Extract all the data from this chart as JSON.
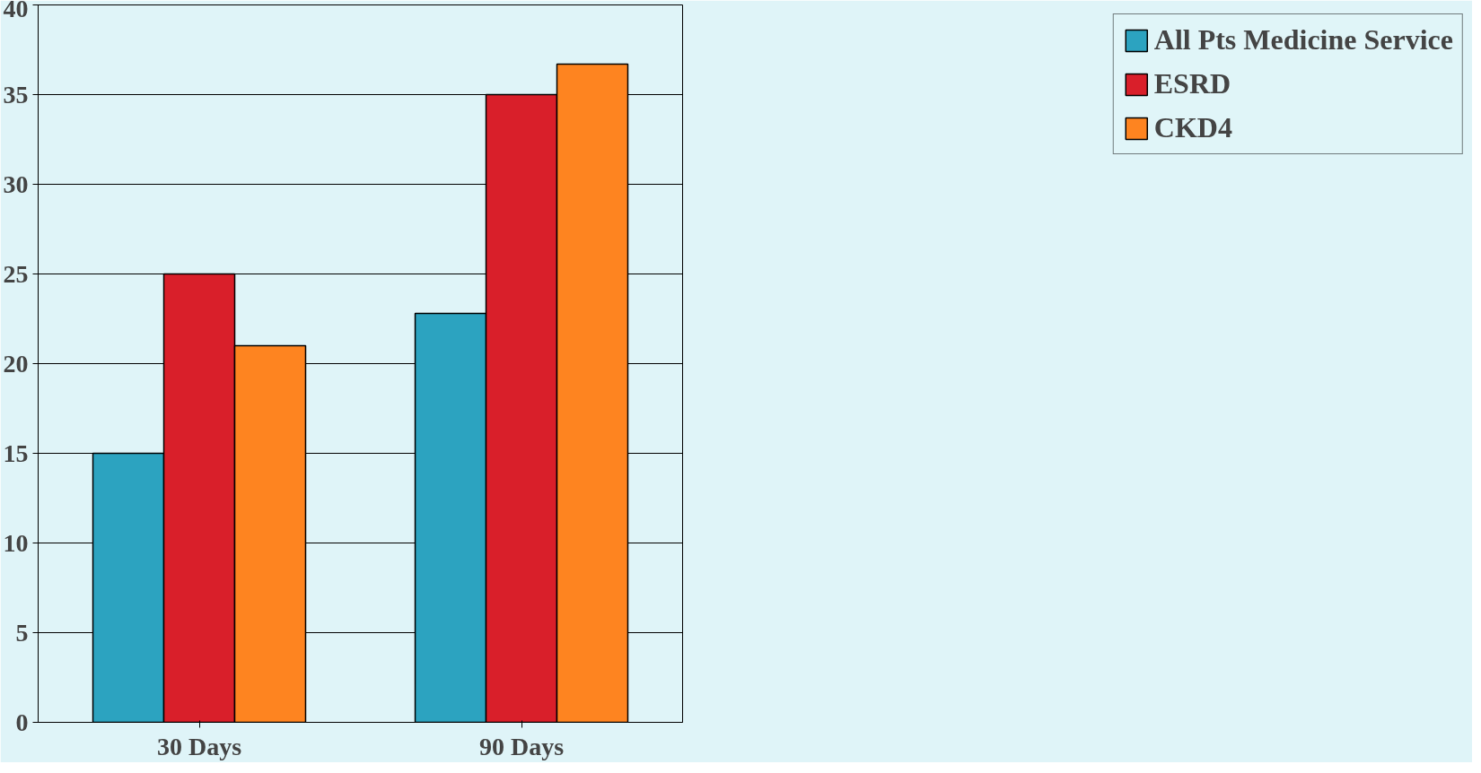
{
  "chart_data": {
    "type": "bar",
    "categories": [
      "30 Days",
      "90 Days"
    ],
    "series": [
      {
        "name": "All Pts Medicine Service",
        "color": "#2ca3c0",
        "values": [
          15,
          22.8
        ]
      },
      {
        "name": "ESRD",
        "color": "#d91f2a",
        "values": [
          25,
          35
        ]
      },
      {
        "name": "CKD4",
        "color": "#fe8420",
        "values": [
          21,
          36.7
        ]
      }
    ],
    "ylim": [
      0,
      40
    ],
    "yticks": [
      0,
      5,
      10,
      15,
      20,
      25,
      30,
      35,
      40
    ],
    "grid": "y",
    "legend": "right"
  }
}
